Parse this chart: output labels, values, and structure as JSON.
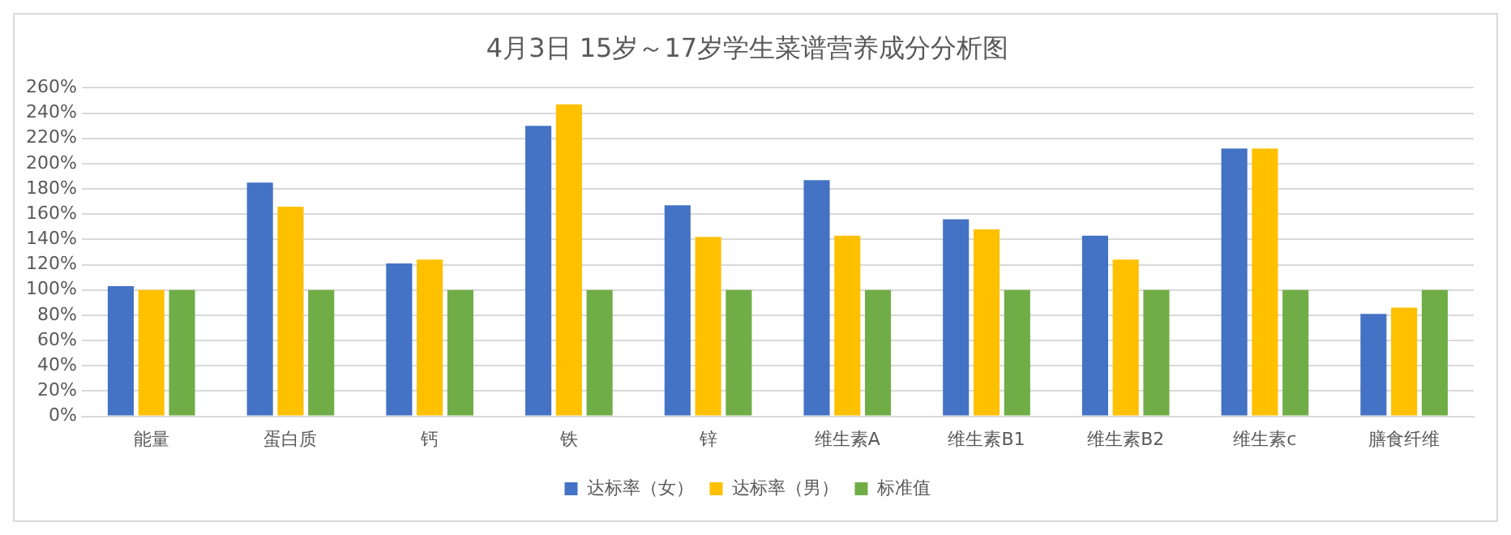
{
  "chart_data": {
    "type": "bar",
    "title": "4月3日 15岁～17岁学生菜谱营养成分分析图",
    "categories": [
      "能量",
      "蛋白质",
      "钙",
      "铁",
      "锌",
      "维生素A",
      "维生素B1",
      "维生素B2",
      "维生素c",
      "膳食纤维"
    ],
    "series": [
      {
        "name": "达标率（女）",
        "color": "#4472c4",
        "values": [
          103,
          185,
          121,
          230,
          167,
          187,
          156,
          143,
          212,
          81
        ]
      },
      {
        "name": "达标率（男）",
        "color": "#ffc000",
        "values": [
          100,
          166,
          124,
          247,
          142,
          143,
          148,
          124,
          212,
          86
        ]
      },
      {
        "name": "标准值",
        "color": "#70ad47",
        "values": [
          100,
          100,
          100,
          100,
          100,
          100,
          100,
          100,
          100,
          100
        ]
      }
    ],
    "ylim": [
      0,
      260
    ],
    "yticks": [
      {
        "value": 0,
        "label": "0%"
      },
      {
        "value": 20,
        "label": "20%"
      },
      {
        "value": 40,
        "label": "40%"
      },
      {
        "value": 60,
        "label": "60%"
      },
      {
        "value": 80,
        "label": "80%"
      },
      {
        "value": 100,
        "label": "100%"
      },
      {
        "value": 120,
        "label": "120%"
      },
      {
        "value": 140,
        "label": "140%"
      },
      {
        "value": 160,
        "label": "160%"
      },
      {
        "value": 180,
        "label": "180%"
      },
      {
        "value": 200,
        "label": "200%"
      },
      {
        "value": 220,
        "label": "220%"
      },
      {
        "value": 240,
        "label": "240%"
      },
      {
        "value": 260,
        "label": "260%"
      }
    ],
    "grid": "y",
    "legend": "bottom"
  }
}
